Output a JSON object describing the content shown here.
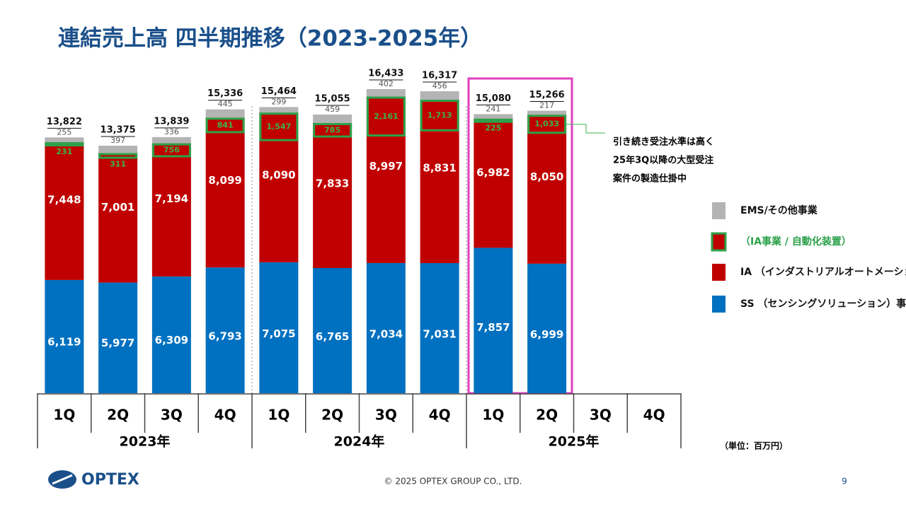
{
  "chart_data": {
    "type": "bar",
    "stacked": true,
    "title": "連結売上高 四半期推移（2023-2025年）",
    "categories": [
      "1Q",
      "2Q",
      "3Q",
      "4Q",
      "1Q",
      "2Q",
      "3Q",
      "4Q",
      "1Q",
      "2Q",
      "3Q",
      "4Q"
    ],
    "year_groups": [
      "2023年",
      "2024年",
      "2025年"
    ],
    "ylim": [
      0,
      18000
    ],
    "series": [
      {
        "name": "SS （センシングソリューション）事業",
        "color": "#0070c0",
        "values": [
          6119,
          5977,
          6309,
          6793,
          7075,
          6765,
          7034,
          7031,
          7857,
          6999,
          null,
          null
        ],
        "value_labels": [
          "6,119",
          "5,977",
          "6,309",
          "6,793",
          "7,075",
          "6,765",
          "7,034",
          "7,031",
          "7,857",
          "6,999",
          null,
          null
        ]
      },
      {
        "name": "IA （インダストリアルオートメーション）事業",
        "color": "#c00000",
        "values": [
          7448,
          7001,
          7194,
          8099,
          8090,
          7833,
          8997,
          8831,
          6982,
          8050,
          null,
          null
        ],
        "value_labels": [
          "7,448",
          "7,001",
          "7,194",
          "8,099",
          "8,090",
          "7,833",
          "8,997",
          "8,831",
          "6,982",
          "8,050",
          null,
          null
        ]
      },
      {
        "name": "EMS/その他事業",
        "color": "#b4b4b4",
        "values": [
          255,
          397,
          336,
          445,
          299,
          459,
          402,
          456,
          241,
          217,
          null,
          null
        ]
      }
    ],
    "ia_automation": {
      "name": "（IA事業 / 自動化装置）",
      "color": "#2ca24a",
      "values": [
        231,
        311,
        756,
        841,
        1547,
        785,
        2161,
        1713,
        225,
        1033,
        null,
        null
      ],
      "value_labels": [
        "231",
        "311",
        "756",
        "841",
        "1,547",
        "785",
        "2,161",
        "1,713",
        "225",
        "1,033",
        null,
        null
      ]
    },
    "totals": [
      13822,
      13375,
      13839,
      15336,
      15464,
      15055,
      16433,
      16317,
      15080,
      15266,
      null,
      null
    ],
    "total_labels": [
      "13,822",
      "13,375",
      "13,839",
      "15,336",
      "15,464",
      "15,055",
      "16,433",
      "16,317",
      "15,080",
      "15,266",
      null,
      null
    ],
    "annotation": [
      "引き続き受注水準は高く",
      "25年3Q以降の大型受注",
      "案件の製造仕掛中"
    ],
    "unit_note": "（単位：百万円）"
  },
  "footer": {
    "logo": "OPTEX",
    "copyright": "© 2025 OPTEX GROUP CO., LTD.",
    "page": "9"
  }
}
